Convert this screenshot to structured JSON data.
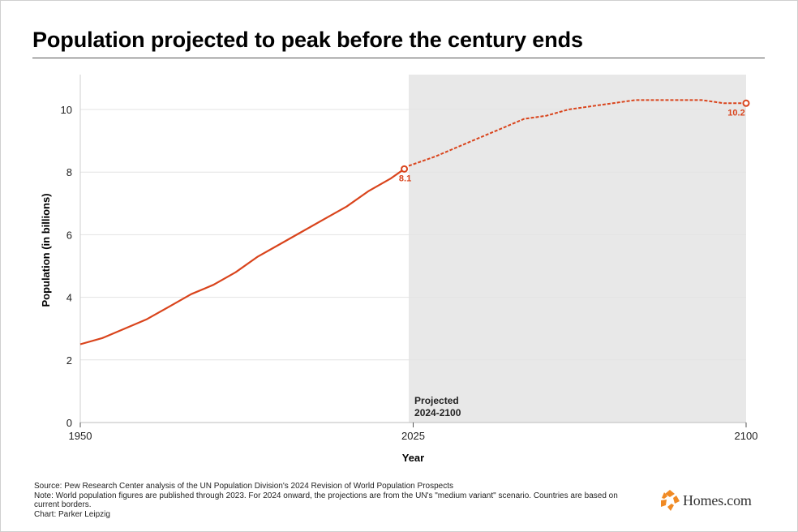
{
  "title": "Population projected to peak before the century ends",
  "chart_data": {
    "type": "line",
    "title": "Population projected to peak before the century ends",
    "xlabel": "Year",
    "ylabel": "Population (in billions)",
    "xlim": [
      1950,
      2100
    ],
    "ylim": [
      0,
      11
    ],
    "x_ticks": [
      1950,
      2025,
      2100
    ],
    "y_ticks": [
      0,
      2,
      4,
      6,
      8,
      10
    ],
    "grid": "horizontal",
    "shaded_region": {
      "x_start": 2024,
      "x_end": 2100,
      "label_line1": "Projected",
      "label_line2": "2024-2100"
    },
    "series": [
      {
        "style": "solid",
        "color": "#d9441c",
        "x": [
          1950,
          1955,
          1960,
          1965,
          1970,
          1975,
          1980,
          1985,
          1990,
          1995,
          2000,
          2005,
          2010,
          2015,
          2020,
          2023
        ],
        "y": [
          2.5,
          2.7,
          3.0,
          3.3,
          3.7,
          4.1,
          4.4,
          4.8,
          5.3,
          5.7,
          6.1,
          6.5,
          6.9,
          7.4,
          7.8,
          8.1
        ]
      },
      {
        "style": "dashed",
        "color": "#d9441c",
        "x": [
          2024,
          2030,
          2035,
          2040,
          2045,
          2050,
          2055,
          2060,
          2065,
          2070,
          2075,
          2080,
          2085,
          2090,
          2095,
          2100
        ],
        "y": [
          8.2,
          8.5,
          8.8,
          9.1,
          9.4,
          9.7,
          9.8,
          10.0,
          10.1,
          10.2,
          10.3,
          10.3,
          10.3,
          10.3,
          10.2,
          10.2
        ]
      }
    ],
    "annotations": [
      {
        "x": 2023,
        "y": 8.1,
        "label": "8.1"
      },
      {
        "x": 2100,
        "y": 10.2,
        "label": "10.2"
      }
    ]
  },
  "notes": {
    "source": "Source: Pew Research Center analysis of the UN Population Division's 2024 Revision of World Population Prospects",
    "note": "Note: World population figures are published through 2023. For 2024 onward, the projections are from the UN's \"medium variant\" scenario. Countries are based on current borders.",
    "credit": "Chart: Parker Leipzig"
  },
  "brand": {
    "name": "Homes.com",
    "color": "#f08a24"
  }
}
